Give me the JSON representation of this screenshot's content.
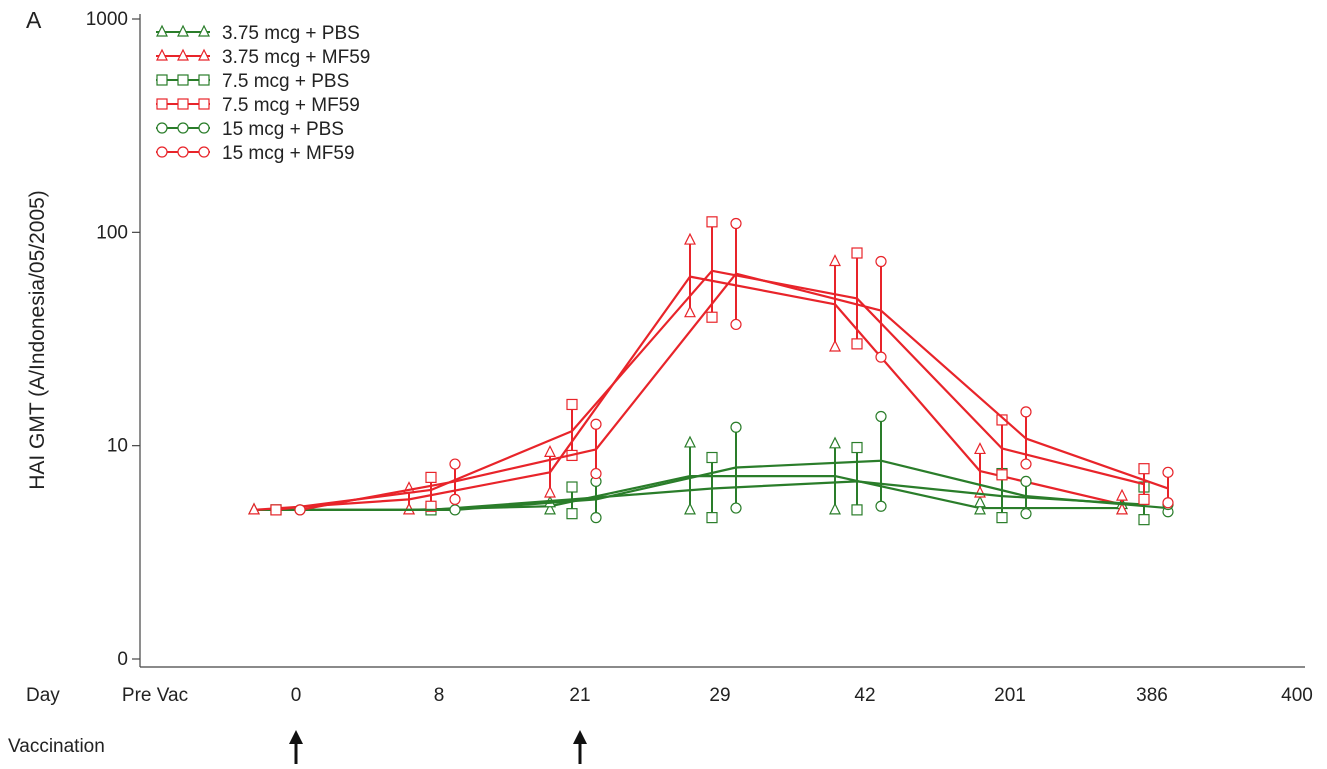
{
  "panel_label": "A",
  "vaccination_label": "Vaccination",
  "vaccination_days": [
    "0",
    "21"
  ],
  "colors": {
    "PBS": "#2a7d2a",
    "MF59": "#e8242a",
    "axis": "#444444"
  },
  "chart_data": {
    "type": "line",
    "ylabel": "HAI GMT (A/Indonesia/05/2005)",
    "xlabel": "Day",
    "yscale": "log",
    "yticks": [
      {
        "label": "0",
        "value": 1
      },
      {
        "label": "10",
        "value": 10
      },
      {
        "label": "100",
        "value": 100
      },
      {
        "label": "1000",
        "value": 1000
      }
    ],
    "categories": [
      "Pre Vac",
      "0",
      "8",
      "21",
      "29",
      "42",
      "201",
      "386",
      "400"
    ],
    "grid": false,
    "legend": "top-left",
    "series": [
      {
        "name": "3.75 mcg + PBS",
        "color": "#2a7d2a",
        "marker": "triangle",
        "points": [
          {
            "x": "0",
            "y": 5.0
          },
          {
            "x": "8",
            "y": 5.0
          },
          {
            "x": "21",
            "y": 5.2,
            "lo": 5.0,
            "hi": 5.4
          },
          {
            "x": "29",
            "y": 7.2,
            "lo": 5.0,
            "hi": 10.3
          },
          {
            "x": "42",
            "y": 7.2,
            "lo": 5.0,
            "hi": 10.2
          },
          {
            "x": "201",
            "y": 5.1,
            "lo": 5.0,
            "hi": 5.4
          },
          {
            "x": "386",
            "y": 5.1,
            "lo": 5.0,
            "hi": 5.3
          }
        ]
      },
      {
        "name": "3.75 mcg + MF59",
        "color": "#e8242a",
        "marker": "triangle",
        "points": [
          {
            "x": "0",
            "y": 5.0
          },
          {
            "x": "8",
            "y": 5.6,
            "lo": 5.0,
            "hi": 6.3
          },
          {
            "x": "21",
            "y": 7.5,
            "lo": 6.0,
            "hi": 9.3
          },
          {
            "x": "29",
            "y": 62,
            "lo": 42,
            "hi": 92
          },
          {
            "x": "42",
            "y": 46,
            "lo": 29,
            "hi": 73
          },
          {
            "x": "201",
            "y": 7.6,
            "lo": 6.0,
            "hi": 9.6
          },
          {
            "x": "386",
            "y": 5.3,
            "lo": 5.0,
            "hi": 5.8
          }
        ]
      },
      {
        "name": "7.5 mcg + PBS",
        "color": "#2a7d2a",
        "marker": "square",
        "points": [
          {
            "x": "0",
            "y": 5.0
          },
          {
            "x": "8",
            "y": 5.0
          },
          {
            "x": "21",
            "y": 5.6,
            "lo": 4.8,
            "hi": 6.4
          },
          {
            "x": "29",
            "y": 6.3,
            "lo": 4.6,
            "hi": 8.8
          },
          {
            "x": "42",
            "y": 6.8,
            "lo": 5.0,
            "hi": 9.8
          },
          {
            "x": "201",
            "y": 5.8,
            "lo": 4.6,
            "hi": 7.4
          },
          {
            "x": "386",
            "y": 5.3,
            "lo": 4.5,
            "hi": 6.4
          }
        ]
      },
      {
        "name": "7.5 mcg + MF59",
        "color": "#e8242a",
        "marker": "square",
        "points": [
          {
            "x": "0",
            "y": 5.0
          },
          {
            "x": "8",
            "y": 6.2,
            "lo": 5.2,
            "hi": 7.1
          },
          {
            "x": "21",
            "y": 11.7,
            "lo": 9.0,
            "hi": 15.6
          },
          {
            "x": "29",
            "y": 66,
            "lo": 40,
            "hi": 112
          },
          {
            "x": "42",
            "y": 49,
            "lo": 30,
            "hi": 80
          },
          {
            "x": "201",
            "y": 9.7,
            "lo": 7.3,
            "hi": 13.2
          },
          {
            "x": "386",
            "y": 6.6,
            "lo": 5.6,
            "hi": 7.8
          }
        ]
      },
      {
        "name": "15 mcg + PBS",
        "color": "#2a7d2a",
        "marker": "circle",
        "points": [
          {
            "x": "0",
            "y": 5.0
          },
          {
            "x": "8",
            "y": 5.0
          },
          {
            "x": "21",
            "y": 5.6,
            "lo": 4.6,
            "hi": 6.8
          },
          {
            "x": "29",
            "y": 7.9,
            "lo": 5.1,
            "hi": 12.2
          },
          {
            "x": "42",
            "y": 8.5,
            "lo": 5.2,
            "hi": 13.7
          },
          {
            "x": "201",
            "y": 5.8,
            "lo": 4.8,
            "hi": 6.8
          },
          {
            "x": "386",
            "y": 5.1,
            "lo": 4.9,
            "hi": 5.3
          }
        ]
      },
      {
        "name": "15 mcg + MF59",
        "color": "#e8242a",
        "marker": "circle",
        "points": [
          {
            "x": "0",
            "y": 5.0
          },
          {
            "x": "8",
            "y": 6.8,
            "lo": 5.6,
            "hi": 8.2
          },
          {
            "x": "21",
            "y": 9.6,
            "lo": 7.4,
            "hi": 12.6
          },
          {
            "x": "29",
            "y": 64,
            "lo": 37,
            "hi": 110
          },
          {
            "x": "42",
            "y": 43,
            "lo": 26,
            "hi": 73
          },
          {
            "x": "201",
            "y": 10.8,
            "lo": 8.2,
            "hi": 14.4
          },
          {
            "x": "386",
            "y": 6.3,
            "lo": 5.4,
            "hi": 7.5
          }
        ]
      }
    ]
  }
}
